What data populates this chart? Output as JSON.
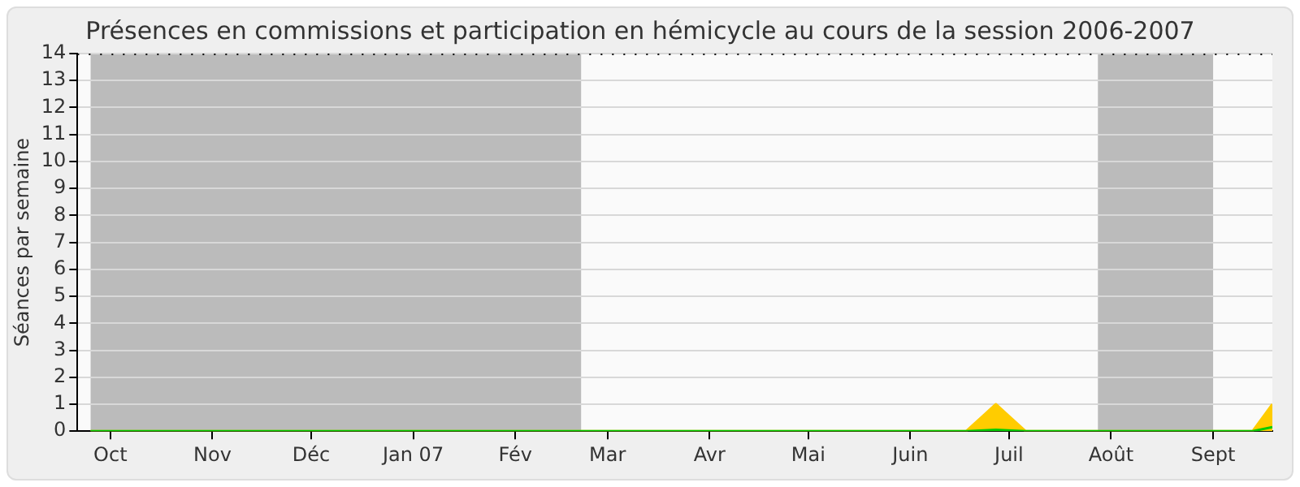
{
  "chart_data": {
    "type": "area",
    "title": "Présences en commissions et participation en hémicycle au cours de la session 2006-2007",
    "ylabel": "Séances par semaine",
    "series": [
      {
        "type": "line",
        "color": "#00cc00",
        "x": [
          "2006-09-25",
          "2007-06-18",
          "2007-06-27",
          "2007-07-06",
          "2007-09-13",
          "2007-09-19"
        ],
        "values": [
          0,
          0,
          0.05,
          0,
          0,
          0.15
        ]
      },
      {
        "color": "#ffcc00",
        "x": [
          "2006-09-25",
          "2007-06-18",
          "2007-06-27",
          "2007-07-06",
          "2007-09-13",
          "2007-09-19"
        ],
        "values": [
          0,
          0,
          1,
          0,
          0,
          1
        ]
      }
    ],
    "xlim": [
      "2006-09-21",
      "2007-09-19"
    ],
    "xticks": [
      {
        "value": "2006-10-01",
        "label": "Oct"
      },
      {
        "value": "2006-11-01",
        "label": "Nov"
      },
      {
        "value": "2006-12-01",
        "label": "Déc"
      },
      {
        "value": "2007-01-01",
        "label": "Jan 07"
      },
      {
        "value": "2007-02-01",
        "label": "Fév"
      },
      {
        "value": "2007-03-01",
        "label": "Mar"
      },
      {
        "value": "2007-04-01",
        "label": "Avr"
      },
      {
        "value": "2007-05-01",
        "label": "Mai"
      },
      {
        "value": "2007-06-01",
        "label": "Juin"
      },
      {
        "value": "2007-07-01",
        "label": "Juil"
      },
      {
        "value": "2007-08-01",
        "label": "Août"
      },
      {
        "value": "2007-09-01",
        "label": "Sept"
      }
    ],
    "ylim": [
      0,
      14
    ],
    "yticks": [
      0,
      1,
      2,
      3,
      4,
      5,
      6,
      7,
      8,
      9,
      10,
      11,
      12,
      13,
      14
    ],
    "bands": [
      {
        "axis": "x",
        "from": "2006-09-25",
        "to": "2007-02-21",
        "color": "#bbbbbb"
      },
      {
        "axis": "x",
        "from": "2007-07-28",
        "to": "2007-09-01",
        "color": "#bbbbbb"
      }
    ],
    "grid": "y",
    "legend": false,
    "marker": "none"
  }
}
